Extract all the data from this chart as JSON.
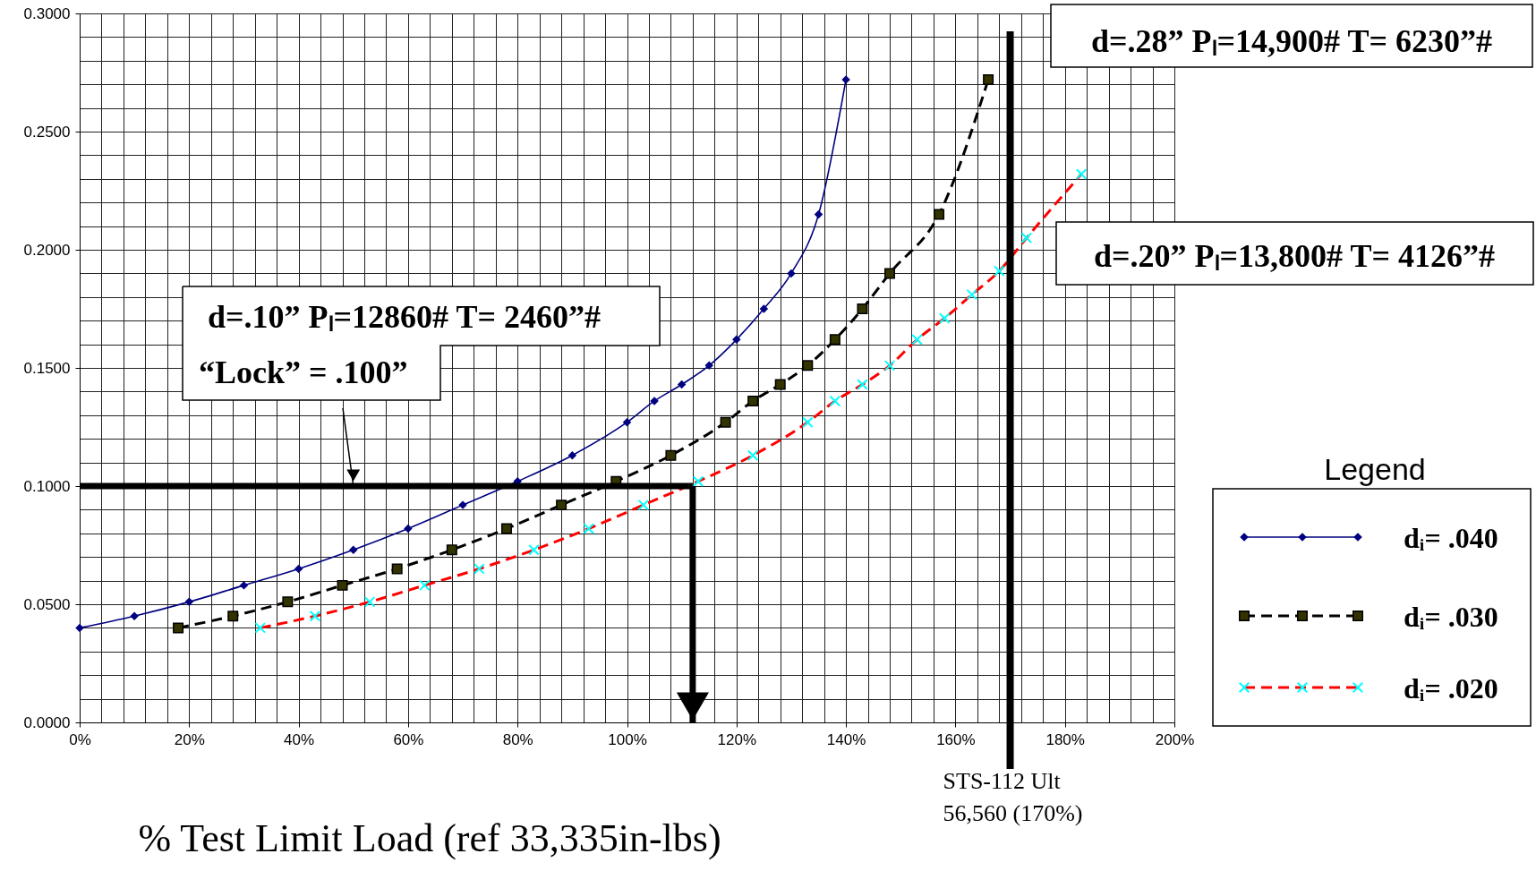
{
  "chart_data": {
    "type": "line",
    "xlabel": "% Test Limit Load (ref 33,335in-lbs)",
    "legend_title": "Legend",
    "legend": "right",
    "grid": true,
    "xlim": [
      0,
      200
    ],
    "ylim": [
      0,
      0.3
    ],
    "xticks": [
      {
        "value": 0,
        "label": "0%"
      },
      {
        "value": 4,
        "label": null
      },
      {
        "value": 8,
        "label": null
      },
      {
        "value": 12,
        "label": null
      },
      {
        "value": 16,
        "label": null
      },
      {
        "value": 20,
        "label": "20%"
      },
      {
        "value": 24,
        "label": null
      },
      {
        "value": 28,
        "label": null
      },
      {
        "value": 32,
        "label": null
      },
      {
        "value": 36,
        "label": null
      },
      {
        "value": 40,
        "label": "40%"
      },
      {
        "value": 44,
        "label": null
      },
      {
        "value": 48,
        "label": null
      },
      {
        "value": 52,
        "label": null
      },
      {
        "value": 56,
        "label": null
      },
      {
        "value": 60,
        "label": "60%"
      },
      {
        "value": 64,
        "label": null
      },
      {
        "value": 68,
        "label": null
      },
      {
        "value": 72,
        "label": null
      },
      {
        "value": 76,
        "label": null
      },
      {
        "value": 80,
        "label": "80%"
      },
      {
        "value": 84,
        "label": null
      },
      {
        "value": 88,
        "label": null
      },
      {
        "value": 92,
        "label": null
      },
      {
        "value": 96,
        "label": null
      },
      {
        "value": 100,
        "label": "100%"
      },
      {
        "value": 104,
        "label": null
      },
      {
        "value": 108,
        "label": null
      },
      {
        "value": 112,
        "label": null
      },
      {
        "value": 116,
        "label": null
      },
      {
        "value": 120,
        "label": "120%"
      },
      {
        "value": 124,
        "label": null
      },
      {
        "value": 128,
        "label": null
      },
      {
        "value": 132,
        "label": null
      },
      {
        "value": 136,
        "label": null
      },
      {
        "value": 140,
        "label": "140%"
      },
      {
        "value": 144,
        "label": null
      },
      {
        "value": 148,
        "label": null
      },
      {
        "value": 152,
        "label": null
      },
      {
        "value": 156,
        "label": null
      },
      {
        "value": 160,
        "label": "160%"
      },
      {
        "value": 164,
        "label": null
      },
      {
        "value": 168,
        "label": null
      },
      {
        "value": 172,
        "label": null
      },
      {
        "value": 176,
        "label": null
      },
      {
        "value": 180,
        "label": "180%"
      },
      {
        "value": 184,
        "label": null
      },
      {
        "value": 188,
        "label": null
      },
      {
        "value": 192,
        "label": null
      },
      {
        "value": 196,
        "label": null
      },
      {
        "value": 200,
        "label": "200%"
      }
    ],
    "yticks": [
      {
        "value": 0,
        "label": "0.0000"
      },
      {
        "value": 0.01,
        "label": null
      },
      {
        "value": 0.02,
        "label": null
      },
      {
        "value": 0.03,
        "label": null
      },
      {
        "value": 0.04,
        "label": null
      },
      {
        "value": 0.05,
        "label": "0.0500"
      },
      {
        "value": 0.06,
        "label": null
      },
      {
        "value": 0.07,
        "label": null
      },
      {
        "value": 0.08,
        "label": null
      },
      {
        "value": 0.09,
        "label": null
      },
      {
        "value": 0.1,
        "label": "0.1000"
      },
      {
        "value": 0.11,
        "label": null
      },
      {
        "value": 0.12,
        "label": null
      },
      {
        "value": 0.13,
        "label": null
      },
      {
        "value": 0.14,
        "label": null
      },
      {
        "value": 0.15,
        "label": "0.1500"
      },
      {
        "value": 0.16,
        "label": null
      },
      {
        "value": 0.17,
        "label": null
      },
      {
        "value": 0.18,
        "label": null
      },
      {
        "value": 0.19,
        "label": null
      },
      {
        "value": 0.2,
        "label": "0.2000"
      },
      {
        "value": 0.21,
        "label": null
      },
      {
        "value": 0.22,
        "label": null
      },
      {
        "value": 0.23,
        "label": null
      },
      {
        "value": 0.24,
        "label": null
      },
      {
        "value": 0.25,
        "label": "0.2500"
      },
      {
        "value": 0.26,
        "label": null
      },
      {
        "value": 0.27,
        "label": null
      },
      {
        "value": 0.28,
        "label": null
      },
      {
        "value": 0.29,
        "label": null
      },
      {
        "value": 0.3,
        "label": "0.3000"
      }
    ],
    "series": [
      {
        "name": "dᵢ= .040",
        "color": "#000080",
        "marker": "diamond",
        "line_style": "solid",
        "x": [
          0,
          10,
          20,
          30,
          40,
          50,
          60,
          70,
          80,
          90,
          100,
          105,
          110,
          115,
          120,
          125,
          130,
          135,
          140
        ],
        "values": [
          0.04,
          0.045,
          0.051,
          0.058,
          0.065,
          0.073,
          0.082,
          0.092,
          0.102,
          0.113,
          0.127,
          0.136,
          0.143,
          0.151,
          0.162,
          0.175,
          0.19,
          0.215,
          0.272
        ]
      },
      {
        "name": "dᵢ= .030",
        "color": "#000000",
        "marker": "square",
        "line_style": "dashed",
        "x": [
          18,
          28,
          38,
          48,
          58,
          68,
          78,
          88,
          98,
          108,
          118,
          123,
          128,
          133,
          138,
          143,
          148,
          157,
          166
        ],
        "values": [
          0.04,
          0.045,
          0.051,
          0.058,
          0.065,
          0.073,
          0.082,
          0.092,
          0.102,
          0.113,
          0.127,
          0.136,
          0.143,
          0.151,
          0.162,
          0.175,
          0.19,
          0.215,
          0.272
        ]
      },
      {
        "name": "dᵢ= .020",
        "color": "#ff0000",
        "marker": "cross",
        "line_style": "dashed",
        "x": [
          33,
          43,
          53,
          63,
          73,
          83,
          93,
          103,
          113,
          123,
          133,
          138,
          143,
          148,
          153,
          158,
          163,
          168,
          173,
          183
        ],
        "values": [
          0.04,
          0.045,
          0.051,
          0.058,
          0.065,
          0.073,
          0.082,
          0.092,
          0.102,
          0.113,
          0.127,
          0.136,
          0.143,
          0.151,
          0.162,
          0.171,
          0.181,
          0.191,
          0.205,
          0.232
        ]
      }
    ],
    "ref_lines": [
      {
        "axis": "y",
        "value": 0.1
      },
      {
        "axis": "x",
        "value": 112
      },
      {
        "axis": "x",
        "value": 170,
        "label": "STS-112 Ult\n56,560 (170%)"
      }
    ],
    "annotations": [
      "d=.10”  Pₗ=12860#  T= 2460”#",
      {
        "text": "“Lock” = .100”",
        "x": 50,
        "y": 0.1
      },
      "d=.28” Pₗ=14,900#   T= 6230”#",
      "d=.20”  Pₗ=13,800#  T= 4126”#"
    ]
  }
}
